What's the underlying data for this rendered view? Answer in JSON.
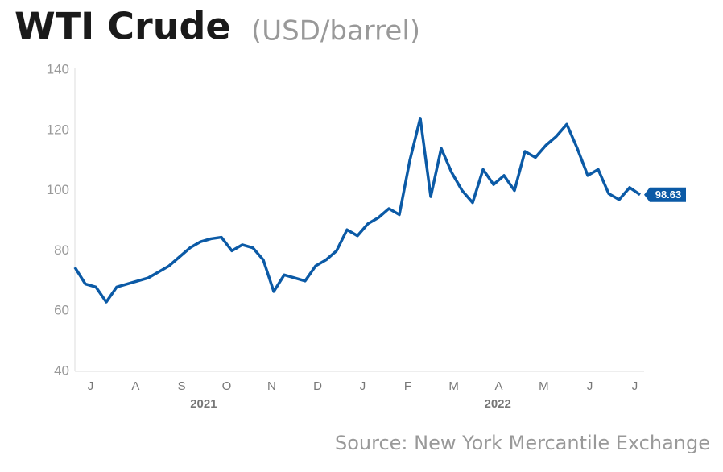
{
  "chart_data": {
    "type": "line",
    "title": "WTI Crude",
    "subtitle": "(USD/barrel)",
    "source": "Source: New York Mercantile Exchange",
    "series": [
      {
        "name": "WTI Crude",
        "color": "#0b5aa6",
        "values": [
          74.5,
          69,
          68,
          63,
          68,
          69,
          70,
          71,
          73,
          75,
          78,
          81,
          83,
          84,
          84.5,
          80,
          82,
          81,
          77,
          66.5,
          72,
          71,
          70,
          75,
          77,
          80,
          87,
          85,
          89,
          91,
          94,
          92,
          110,
          124,
          98,
          114,
          106,
          100,
          96,
          107,
          102,
          105,
          100,
          113,
          111,
          115,
          118,
          122,
          114,
          105,
          107,
          99,
          97,
          101,
          98.63
        ]
      }
    ],
    "xlim": [
      0,
      54
    ],
    "xticks": [
      {
        "value": 1.5,
        "label": "J"
      },
      {
        "value": 5.8,
        "label": "A"
      },
      {
        "value": 10.2,
        "label": "S"
      },
      {
        "value": 14.5,
        "label": "O"
      },
      {
        "value": 18.8,
        "label": "N"
      },
      {
        "value": 23.2,
        "label": "D"
      },
      {
        "value": 27.5,
        "label": "J"
      },
      {
        "value": 31.8,
        "label": "F"
      },
      {
        "value": 36.2,
        "label": "M"
      },
      {
        "value": 40.5,
        "label": "A"
      },
      {
        "value": 44.8,
        "label": "M"
      },
      {
        "value": 49.2,
        "label": "J"
      },
      {
        "value": 53.5,
        "label": "J"
      }
    ],
    "year_labels": [
      {
        "value": 12.3,
        "label": "2021"
      },
      {
        "value": 40.4,
        "label": "2022"
      }
    ],
    "ylim": [
      40,
      140
    ],
    "yticks": [
      40,
      60,
      80,
      100,
      120,
      140
    ],
    "grid": false
  }
}
